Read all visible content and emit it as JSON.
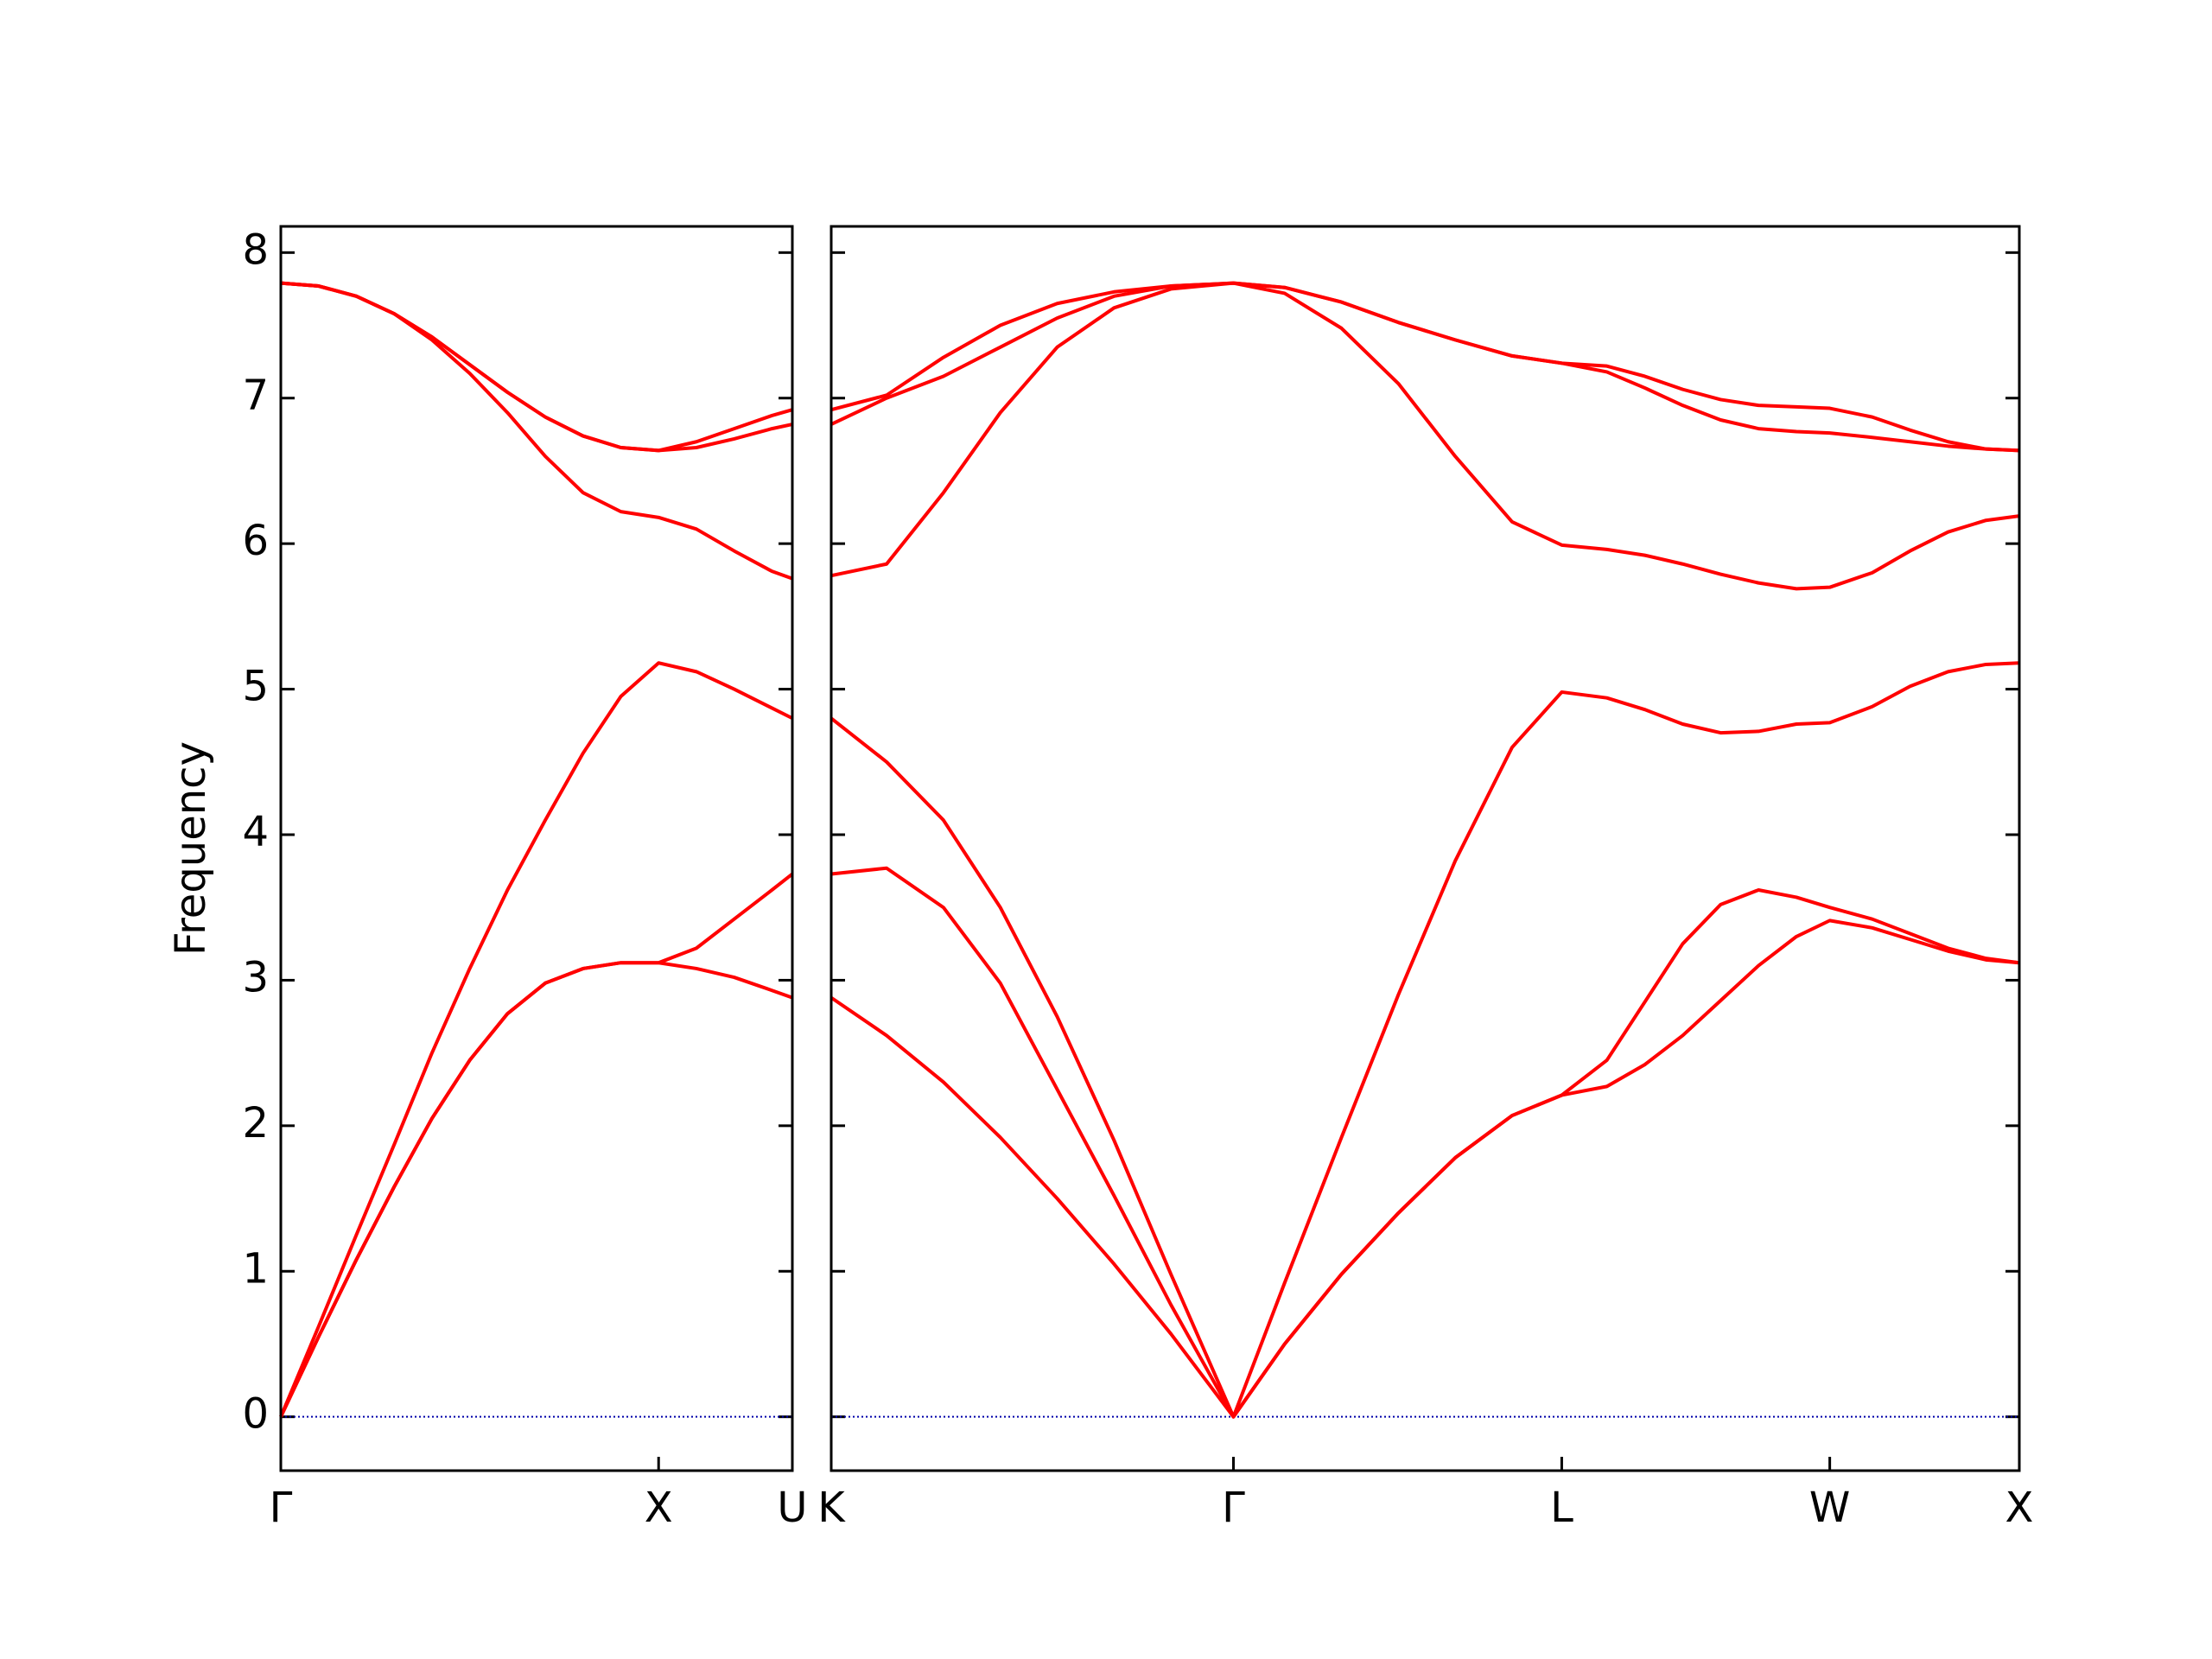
{
  "chart_data": [
    {
      "type": "line",
      "ylabel": "Frequency",
      "x": [
        0,
        0.1,
        0.2,
        0.3,
        0.4,
        0.5,
        0.6,
        0.7,
        0.8,
        0.9,
        1.0,
        1.1,
        1.2,
        1.3,
        1.354
      ],
      "xlim": [
        0,
        1.354
      ],
      "xticks": [
        {
          "value": 0,
          "label": "Γ"
        },
        {
          "value": 1.0,
          "label": "X"
        },
        {
          "value": 1.354,
          "label": "U"
        }
      ],
      "ylim": [
        -0.37,
        8.18
      ],
      "yticks": [
        0,
        1,
        2,
        3,
        4,
        5,
        6,
        7,
        8
      ],
      "ytick_labels": true,
      "hline": 0,
      "hline_color": "#0000aa",
      "series": [
        {
          "color": "#ff0000",
          "values": [
            0,
            0.55,
            1.08,
            1.58,
            2.05,
            2.45,
            2.77,
            2.98,
            3.08,
            3.12,
            3.12,
            3.08,
            3.02,
            2.93,
            2.88
          ]
        },
        {
          "color": "#ff0000",
          "values": [
            0,
            0.55,
            1.08,
            1.58,
            2.05,
            2.45,
            2.77,
            2.98,
            3.08,
            3.12,
            3.12,
            3.22,
            3.42,
            3.62,
            3.73
          ]
        },
        {
          "color": "#ff0000",
          "values": [
            0,
            0.62,
            1.25,
            1.87,
            2.5,
            3.08,
            3.62,
            4.1,
            4.56,
            4.95,
            5.18,
            5.12,
            5.0,
            4.87,
            4.8
          ]
        },
        {
          "color": "#ff0000",
          "values": [
            7.79,
            7.77,
            7.7,
            7.58,
            7.4,
            7.17,
            6.9,
            6.6,
            6.35,
            6.22,
            6.18,
            6.1,
            5.95,
            5.81,
            5.76
          ]
        },
        {
          "color": "#ff0000",
          "values": [
            7.79,
            7.77,
            7.7,
            7.58,
            7.42,
            7.23,
            7.04,
            6.87,
            6.74,
            6.66,
            6.64,
            6.66,
            6.72,
            6.79,
            6.82
          ]
        },
        {
          "color": "#ff0000",
          "values": [
            7.79,
            7.77,
            7.7,
            7.58,
            7.42,
            7.23,
            7.04,
            6.87,
            6.74,
            6.66,
            6.64,
            6.7,
            6.79,
            6.88,
            6.92
          ]
        }
      ]
    },
    {
      "type": "line",
      "x": [
        1.354,
        1.5,
        1.65,
        1.8,
        1.95,
        2.1,
        2.25,
        2.415,
        2.55,
        2.7,
        2.85,
        3.0,
        3.15,
        3.281,
        3.4,
        3.5,
        3.6,
        3.7,
        3.8,
        3.9,
        3.988,
        4.1,
        4.2,
        4.3,
        4.4,
        4.488
      ],
      "xlim": [
        1.354,
        4.488
      ],
      "xticks": [
        {
          "value": 1.354,
          "label": "K"
        },
        {
          "value": 2.415,
          "label": "Γ"
        },
        {
          "value": 3.281,
          "label": "L"
        },
        {
          "value": 3.988,
          "label": "W"
        },
        {
          "value": 4.488,
          "label": "X"
        }
      ],
      "ylim": [
        -0.37,
        8.18
      ],
      "yticks": [
        0,
        1,
        2,
        3,
        4,
        5,
        6,
        7,
        8
      ],
      "ytick_labels": false,
      "hline": 0,
      "hline_color": "#0000aa",
      "series": [
        {
          "color": "#ff0000",
          "values": [
            2.88,
            2.62,
            2.3,
            1.92,
            1.5,
            1.05,
            0.57,
            0,
            0.5,
            0.98,
            1.4,
            1.78,
            2.07,
            2.21,
            2.27,
            2.42,
            2.62,
            2.86,
            3.1,
            3.3,
            3.41,
            3.36,
            3.28,
            3.2,
            3.14,
            3.12
          ]
        },
        {
          "color": "#ff0000",
          "values": [
            3.73,
            3.77,
            3.5,
            2.98,
            2.25,
            1.52,
            0.77,
            0,
            0.5,
            0.98,
            1.4,
            1.78,
            2.07,
            2.21,
            2.45,
            2.85,
            3.25,
            3.52,
            3.62,
            3.57,
            3.5,
            3.42,
            3.32,
            3.22,
            3.15,
            3.12
          ]
        },
        {
          "color": "#ff0000",
          "values": [
            4.8,
            4.5,
            4.1,
            3.5,
            2.75,
            1.9,
            0.98,
            0,
            0.92,
            1.92,
            2.9,
            3.82,
            4.6,
            4.98,
            4.94,
            4.86,
            4.76,
            4.7,
            4.71,
            4.76,
            4.77,
            4.88,
            5.02,
            5.12,
            5.17,
            5.18
          ]
        },
        {
          "color": "#ff0000",
          "values": [
            5.78,
            5.86,
            6.35,
            6.9,
            7.35,
            7.62,
            7.75,
            7.79,
            7.72,
            7.48,
            7.1,
            6.6,
            6.15,
            5.99,
            5.96,
            5.92,
            5.86,
            5.79,
            5.73,
            5.69,
            5.7,
            5.8,
            5.95,
            6.08,
            6.16,
            6.19
          ]
        },
        {
          "color": "#ff0000",
          "values": [
            6.82,
            7.0,
            7.15,
            7.35,
            7.55,
            7.7,
            7.77,
            7.79,
            7.76,
            7.66,
            7.52,
            7.4,
            7.29,
            7.24,
            7.18,
            7.07,
            6.95,
            6.85,
            6.79,
            6.77,
            6.76,
            6.73,
            6.7,
            6.67,
            6.65,
            6.64
          ]
        },
        {
          "color": "#ff0000",
          "values": [
            6.92,
            7.02,
            7.28,
            7.5,
            7.65,
            7.73,
            7.77,
            7.79,
            7.76,
            7.66,
            7.52,
            7.4,
            7.29,
            7.24,
            7.22,
            7.15,
            7.06,
            6.99,
            6.95,
            6.94,
            6.93,
            6.87,
            6.78,
            6.7,
            6.65,
            6.64
          ]
        }
      ]
    }
  ]
}
